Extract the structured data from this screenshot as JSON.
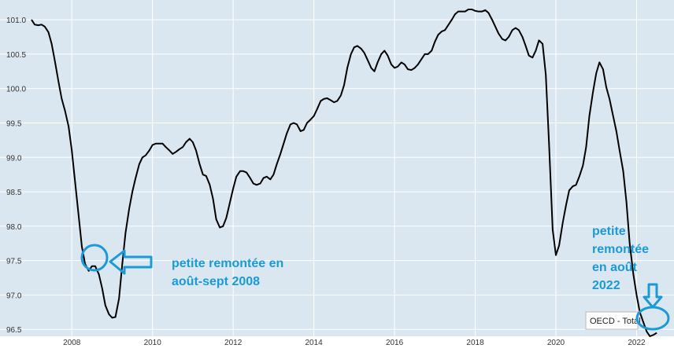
{
  "chart_data": {
    "type": "line",
    "xlim": [
      2007.0,
      2022.85
    ],
    "ylim": [
      96.4,
      101.15
    ],
    "grid": true,
    "x_tick_labels": [
      "2008",
      "2010",
      "2012",
      "2014",
      "2016",
      "2018",
      "2020",
      "2022"
    ],
    "x_tick_values": [
      2008,
      2010,
      2012,
      2014,
      2016,
      2018,
      2020,
      2022
    ],
    "y_tick_labels": [
      "96.5",
      "97.0",
      "97.5",
      "98.0",
      "98.5",
      "99.0",
      "99.5",
      "100.0",
      "100.5",
      "101.0"
    ],
    "y_tick_values": [
      96.5,
      97.0,
      97.5,
      98.0,
      98.5,
      99.0,
      99.5,
      100.0,
      100.5,
      101.0
    ],
    "series": [
      {
        "name": "OECD - Total",
        "color": "#000000",
        "points": [
          [
            2007.0,
            101.0
          ],
          [
            2007.08,
            100.93
          ],
          [
            2007.17,
            100.92
          ],
          [
            2007.25,
            100.93
          ],
          [
            2007.33,
            100.9
          ],
          [
            2007.42,
            100.82
          ],
          [
            2007.5,
            100.65
          ],
          [
            2007.58,
            100.4
          ],
          [
            2007.67,
            100.1
          ],
          [
            2007.75,
            99.85
          ],
          [
            2007.83,
            99.68
          ],
          [
            2007.92,
            99.45
          ],
          [
            2008.0,
            99.1
          ],
          [
            2008.08,
            98.65
          ],
          [
            2008.17,
            98.15
          ],
          [
            2008.25,
            97.7
          ],
          [
            2008.33,
            97.45
          ],
          [
            2008.42,
            97.35
          ],
          [
            2008.5,
            97.42
          ],
          [
            2008.58,
            97.42
          ],
          [
            2008.67,
            97.3
          ],
          [
            2008.75,
            97.1
          ],
          [
            2008.83,
            96.85
          ],
          [
            2008.92,
            96.72
          ],
          [
            2009.0,
            96.67
          ],
          [
            2009.08,
            96.68
          ],
          [
            2009.17,
            96.95
          ],
          [
            2009.25,
            97.45
          ],
          [
            2009.33,
            97.9
          ],
          [
            2009.42,
            98.25
          ],
          [
            2009.5,
            98.5
          ],
          [
            2009.58,
            98.7
          ],
          [
            2009.67,
            98.9
          ],
          [
            2009.75,
            99.0
          ],
          [
            2009.83,
            99.03
          ],
          [
            2009.92,
            99.1
          ],
          [
            2010.0,
            99.18
          ],
          [
            2010.08,
            99.2
          ],
          [
            2010.17,
            99.2
          ],
          [
            2010.25,
            99.2
          ],
          [
            2010.33,
            99.15
          ],
          [
            2010.42,
            99.1
          ],
          [
            2010.5,
            99.05
          ],
          [
            2010.58,
            99.08
          ],
          [
            2010.67,
            99.12
          ],
          [
            2010.75,
            99.15
          ],
          [
            2010.83,
            99.22
          ],
          [
            2010.92,
            99.27
          ],
          [
            2011.0,
            99.22
          ],
          [
            2011.08,
            99.1
          ],
          [
            2011.17,
            98.9
          ],
          [
            2011.25,
            98.75
          ],
          [
            2011.33,
            98.73
          ],
          [
            2011.42,
            98.6
          ],
          [
            2011.5,
            98.4
          ],
          [
            2011.58,
            98.1
          ],
          [
            2011.67,
            97.98
          ],
          [
            2011.75,
            98.0
          ],
          [
            2011.83,
            98.12
          ],
          [
            2011.92,
            98.35
          ],
          [
            2012.0,
            98.55
          ],
          [
            2012.08,
            98.72
          ],
          [
            2012.17,
            98.8
          ],
          [
            2012.25,
            98.8
          ],
          [
            2012.33,
            98.78
          ],
          [
            2012.42,
            98.7
          ],
          [
            2012.5,
            98.62
          ],
          [
            2012.58,
            98.6
          ],
          [
            2012.67,
            98.62
          ],
          [
            2012.75,
            98.7
          ],
          [
            2012.83,
            98.72
          ],
          [
            2012.92,
            98.68
          ],
          [
            2013.0,
            98.75
          ],
          [
            2013.08,
            98.9
          ],
          [
            2013.17,
            99.05
          ],
          [
            2013.25,
            99.2
          ],
          [
            2013.33,
            99.35
          ],
          [
            2013.42,
            99.48
          ],
          [
            2013.5,
            99.5
          ],
          [
            2013.58,
            99.48
          ],
          [
            2013.67,
            99.38
          ],
          [
            2013.75,
            99.4
          ],
          [
            2013.83,
            99.5
          ],
          [
            2013.92,
            99.55
          ],
          [
            2014.0,
            99.6
          ],
          [
            2014.08,
            99.7
          ],
          [
            2014.17,
            99.82
          ],
          [
            2014.25,
            99.85
          ],
          [
            2014.33,
            99.86
          ],
          [
            2014.42,
            99.83
          ],
          [
            2014.5,
            99.8
          ],
          [
            2014.58,
            99.82
          ],
          [
            2014.67,
            99.9
          ],
          [
            2014.75,
            100.05
          ],
          [
            2014.83,
            100.3
          ],
          [
            2014.92,
            100.5
          ],
          [
            2015.0,
            100.6
          ],
          [
            2015.08,
            100.62
          ],
          [
            2015.17,
            100.58
          ],
          [
            2015.25,
            100.52
          ],
          [
            2015.33,
            100.42
          ],
          [
            2015.42,
            100.3
          ],
          [
            2015.5,
            100.25
          ],
          [
            2015.58,
            100.38
          ],
          [
            2015.67,
            100.5
          ],
          [
            2015.75,
            100.55
          ],
          [
            2015.83,
            100.48
          ],
          [
            2015.92,
            100.35
          ],
          [
            2016.0,
            100.3
          ],
          [
            2016.08,
            100.32
          ],
          [
            2016.17,
            100.38
          ],
          [
            2016.25,
            100.35
          ],
          [
            2016.33,
            100.28
          ],
          [
            2016.42,
            100.27
          ],
          [
            2016.5,
            100.3
          ],
          [
            2016.58,
            100.35
          ],
          [
            2016.67,
            100.43
          ],
          [
            2016.75,
            100.5
          ],
          [
            2016.83,
            100.5
          ],
          [
            2016.92,
            100.55
          ],
          [
            2017.0,
            100.68
          ],
          [
            2017.08,
            100.78
          ],
          [
            2017.17,
            100.83
          ],
          [
            2017.25,
            100.85
          ],
          [
            2017.33,
            100.92
          ],
          [
            2017.42,
            101.0
          ],
          [
            2017.5,
            101.08
          ],
          [
            2017.58,
            101.12
          ],
          [
            2017.67,
            101.12
          ],
          [
            2017.75,
            101.12
          ],
          [
            2017.83,
            101.15
          ],
          [
            2017.92,
            101.15
          ],
          [
            2018.0,
            101.13
          ],
          [
            2018.08,
            101.12
          ],
          [
            2018.17,
            101.12
          ],
          [
            2018.25,
            101.14
          ],
          [
            2018.33,
            101.1
          ],
          [
            2018.42,
            101.0
          ],
          [
            2018.5,
            100.9
          ],
          [
            2018.58,
            100.8
          ],
          [
            2018.67,
            100.72
          ],
          [
            2018.75,
            100.7
          ],
          [
            2018.83,
            100.75
          ],
          [
            2018.92,
            100.85
          ],
          [
            2019.0,
            100.88
          ],
          [
            2019.08,
            100.85
          ],
          [
            2019.17,
            100.75
          ],
          [
            2019.25,
            100.62
          ],
          [
            2019.33,
            100.48
          ],
          [
            2019.42,
            100.45
          ],
          [
            2019.5,
            100.55
          ],
          [
            2019.58,
            100.7
          ],
          [
            2019.67,
            100.65
          ],
          [
            2019.75,
            100.2
          ],
          [
            2019.83,
            99.2
          ],
          [
            2019.92,
            97.95
          ],
          [
            2020.0,
            97.58
          ],
          [
            2020.08,
            97.72
          ],
          [
            2020.17,
            98.05
          ],
          [
            2020.25,
            98.3
          ],
          [
            2020.33,
            98.52
          ],
          [
            2020.42,
            98.58
          ],
          [
            2020.5,
            98.6
          ],
          [
            2020.58,
            98.72
          ],
          [
            2020.67,
            98.88
          ],
          [
            2020.75,
            99.15
          ],
          [
            2020.83,
            99.6
          ],
          [
            2020.92,
            99.95
          ],
          [
            2021.0,
            100.22
          ],
          [
            2021.08,
            100.38
          ],
          [
            2021.17,
            100.28
          ],
          [
            2021.25,
            100.02
          ],
          [
            2021.33,
            99.85
          ],
          [
            2021.42,
            99.6
          ],
          [
            2021.5,
            99.38
          ],
          [
            2021.58,
            99.1
          ],
          [
            2021.67,
            98.8
          ],
          [
            2021.75,
            98.35
          ],
          [
            2021.83,
            97.75
          ],
          [
            2021.92,
            97.3
          ],
          [
            2022.0,
            97.0
          ],
          [
            2022.08,
            96.75
          ],
          [
            2022.17,
            96.6
          ],
          [
            2022.25,
            96.47
          ],
          [
            2022.33,
            96.4
          ],
          [
            2022.42,
            96.42
          ],
          [
            2022.5,
            96.45
          ]
        ]
      }
    ],
    "legend": {
      "label": "OECD - Total",
      "placement": "bottom-right"
    }
  },
  "annotations": [
    {
      "id": "note-2008",
      "lines": [
        "petite remontée en",
        "août-sept 2008"
      ],
      "color": "#1a9ad6"
    },
    {
      "id": "note-2022",
      "lines": [
        "petite",
        "remontée",
        "en août",
        "2022"
      ],
      "color": "#1a9ad6"
    }
  ],
  "colors": {
    "plot_background": "#dbe7f0",
    "gridline": "#ffffff",
    "annotation": "#1a9ad6",
    "line": "#000000"
  }
}
